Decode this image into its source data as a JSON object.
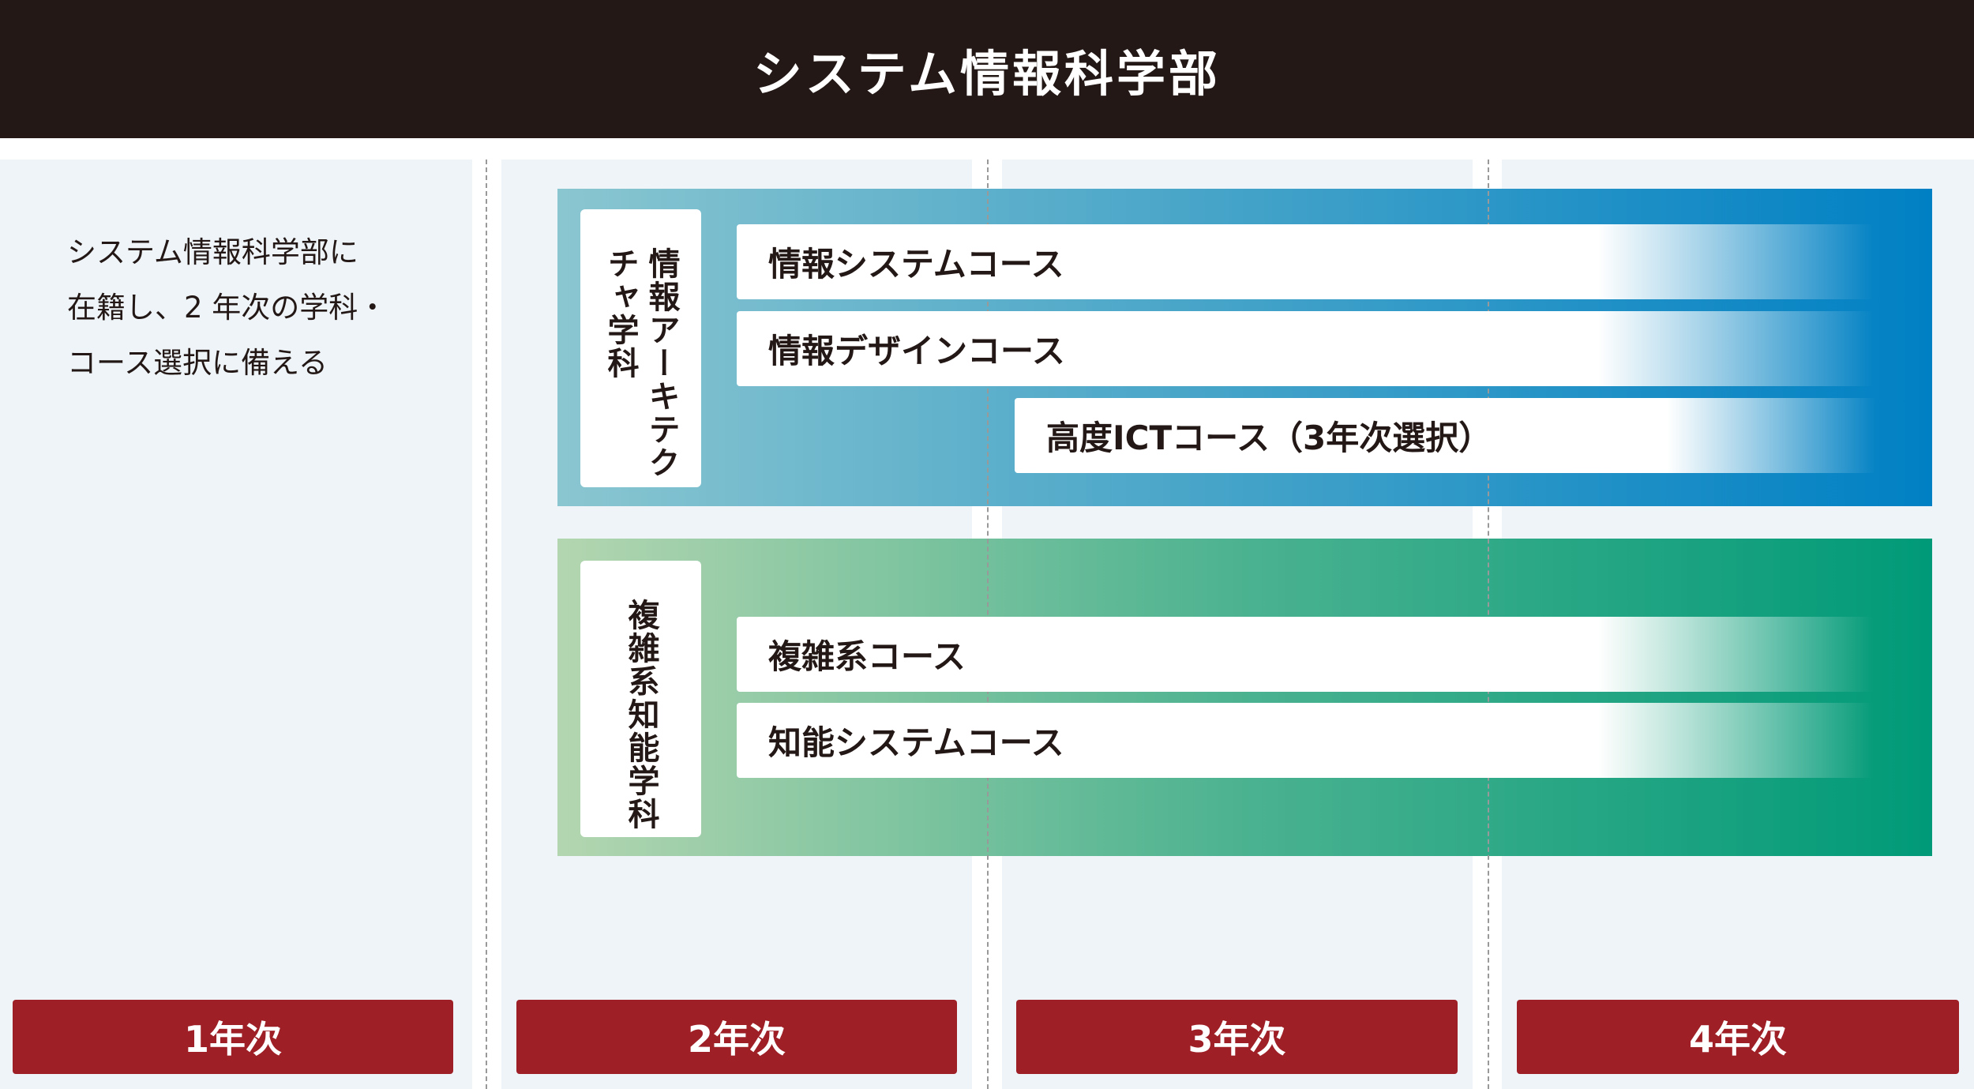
{
  "header": {
    "title": "システム情報科学部"
  },
  "intro": {
    "lines": [
      "システム情報科学部に",
      "在籍し、2 年次の学科・",
      "コース選択に備える"
    ]
  },
  "departments": [
    {
      "name": "情報アーキテクチャ学科",
      "color": "#0080c4",
      "courses": [
        "情報システムコース",
        "情報デザインコース",
        "高度ICTコース（3年次選択）"
      ]
    },
    {
      "name": "複雑系知能学科",
      "color": "#009a78",
      "courses": [
        "複雑系コース",
        "知能システムコース"
      ]
    }
  ],
  "years": [
    "1年次",
    "2年次",
    "3年次",
    "4年次"
  ],
  "colors": {
    "header": "#231815",
    "year_button": "#9e1f26",
    "column_bg": "#eef4f8"
  }
}
